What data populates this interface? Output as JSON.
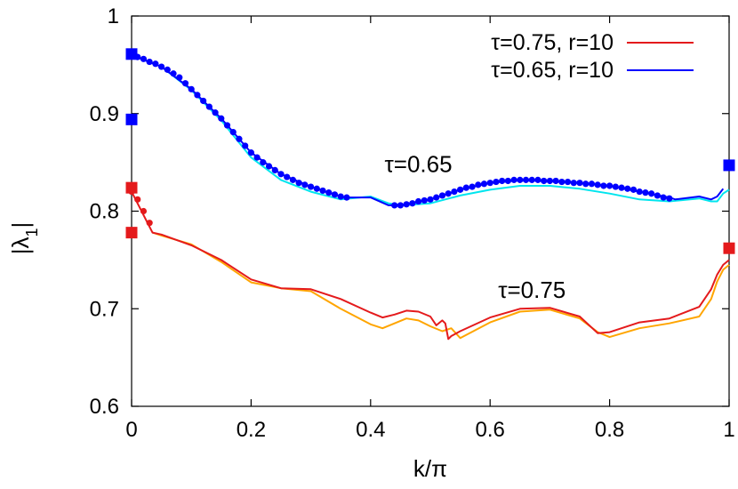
{
  "chart_data": {
    "type": "line",
    "xlabel": "k/π",
    "ylabel": "|λ1|",
    "ylabel_main": "|λ",
    "ylabel_sub": "1",
    "ylabel_close": "|",
    "xlim": [
      0,
      1
    ],
    "ylim": [
      0.6,
      1
    ],
    "xticks": [
      0,
      0.2,
      0.4,
      0.6,
      0.8,
      1
    ],
    "yticks": [
      0.6,
      0.7,
      0.8,
      0.9,
      1
    ],
    "xtick_labels": [
      "0",
      "0.2",
      "0.4",
      "0.6",
      "0.8",
      "1"
    ],
    "ytick_labels": [
      "0.6",
      "0.7",
      "0.8",
      "0.9",
      "1"
    ],
    "legend_position": "top-right",
    "legend": [
      {
        "label": "τ=0.75, r=10",
        "color": "#e41a1c"
      },
      {
        "label": "τ=0.65, r=10",
        "color": "#0000ff"
      }
    ],
    "annotations": [
      {
        "text": "τ=0.65",
        "x": 0.48,
        "y": 0.84
      },
      {
        "text": "τ=0.75",
        "x": 0.67,
        "y": 0.711
      }
    ],
    "series": [
      {
        "name": "τ=0.75, r=10",
        "color": "#e41a1c",
        "style": "line",
        "x": [
          0.0,
          0.035,
          0.05,
          0.1,
          0.15,
          0.2,
          0.25,
          0.3,
          0.35,
          0.4,
          0.42,
          0.44,
          0.46,
          0.48,
          0.5,
          0.51,
          0.52,
          0.525,
          0.53,
          0.535,
          0.55,
          0.6,
          0.65,
          0.7,
          0.75,
          0.78,
          0.8,
          0.85,
          0.9,
          0.95,
          0.97,
          0.98,
          0.99,
          1.0
        ],
        "y": [
          0.82,
          0.778,
          0.776,
          0.765,
          0.75,
          0.73,
          0.721,
          0.72,
          0.71,
          0.696,
          0.691,
          0.694,
          0.698,
          0.697,
          0.692,
          0.683,
          0.688,
          0.685,
          0.669,
          0.672,
          0.677,
          0.691,
          0.7,
          0.701,
          0.692,
          0.675,
          0.676,
          0.686,
          0.69,
          0.702,
          0.72,
          0.735,
          0.745,
          0.75
        ]
      },
      {
        "name": "τ=0.65, r=10",
        "color": "#0000ff",
        "style": "line",
        "x": [
          0.0,
          0.05,
          0.1,
          0.15,
          0.2,
          0.25,
          0.3,
          0.35,
          0.36,
          0.4,
          0.43,
          0.45,
          0.5,
          0.55,
          0.6,
          0.65,
          0.7,
          0.75,
          0.8,
          0.85,
          0.9,
          0.91,
          0.95,
          0.97,
          0.98,
          0.99
        ],
        "y": [
          0.96,
          0.948,
          0.925,
          0.895,
          0.86,
          0.838,
          0.825,
          0.815,
          0.814,
          0.814,
          0.806,
          0.806,
          0.812,
          0.822,
          0.829,
          0.832,
          0.831,
          0.829,
          0.826,
          0.82,
          0.814,
          0.812,
          0.815,
          0.812,
          0.815,
          0.823
        ]
      },
      {
        "name": "",
        "color": "#ffa500",
        "style": "line",
        "x": [
          0.035,
          0.05,
          0.1,
          0.15,
          0.2,
          0.25,
          0.3,
          0.35,
          0.4,
          0.42,
          0.44,
          0.46,
          0.48,
          0.5,
          0.52,
          0.535,
          0.55,
          0.6,
          0.65,
          0.7,
          0.75,
          0.78,
          0.8,
          0.85,
          0.9,
          0.95,
          0.97,
          0.98,
          0.99,
          1.0
        ],
        "y": [
          0.778,
          0.775,
          0.766,
          0.748,
          0.727,
          0.721,
          0.718,
          0.7,
          0.684,
          0.68,
          0.685,
          0.69,
          0.688,
          0.682,
          0.677,
          0.68,
          0.67,
          0.686,
          0.697,
          0.699,
          0.69,
          0.676,
          0.671,
          0.68,
          0.685,
          0.692,
          0.71,
          0.728,
          0.74,
          0.745
        ]
      },
      {
        "name": "",
        "color": "#00e5ee",
        "style": "line",
        "x": [
          0.05,
          0.1,
          0.15,
          0.2,
          0.25,
          0.3,
          0.35,
          0.4,
          0.43,
          0.45,
          0.5,
          0.55,
          0.6,
          0.65,
          0.7,
          0.75,
          0.8,
          0.85,
          0.9,
          0.95,
          0.97,
          0.98,
          0.99,
          1.0
        ],
        "y": [
          0.948,
          0.924,
          0.893,
          0.855,
          0.832,
          0.82,
          0.812,
          0.815,
          0.808,
          0.806,
          0.808,
          0.816,
          0.822,
          0.826,
          0.826,
          0.823,
          0.818,
          0.812,
          0.81,
          0.813,
          0.81,
          0.81,
          0.818,
          0.822
        ]
      },
      {
        "name": "",
        "color": "#0000ff",
        "style": "points",
        "x": [
          0.0,
          0.01,
          0.02,
          0.03,
          0.04,
          0.05,
          0.06,
          0.07,
          0.08,
          0.09,
          0.1,
          0.11,
          0.12,
          0.13,
          0.14,
          0.15,
          0.16,
          0.17,
          0.18,
          0.19,
          0.2,
          0.21,
          0.22,
          0.23,
          0.24,
          0.25,
          0.26,
          0.27,
          0.28,
          0.29,
          0.3,
          0.31,
          0.32,
          0.33,
          0.34,
          0.35,
          0.36,
          0.44,
          0.45,
          0.46,
          0.47,
          0.48,
          0.49,
          0.5,
          0.51,
          0.52,
          0.53,
          0.54,
          0.55,
          0.56,
          0.57,
          0.58,
          0.59,
          0.6,
          0.61,
          0.62,
          0.63,
          0.64,
          0.65,
          0.66,
          0.67,
          0.68,
          0.69,
          0.7,
          0.71,
          0.72,
          0.73,
          0.74,
          0.75,
          0.76,
          0.77,
          0.78,
          0.79,
          0.8,
          0.81,
          0.82,
          0.83,
          0.84,
          0.85,
          0.86,
          0.87,
          0.88,
          0.89,
          0.9
        ],
        "y": [
          0.96,
          0.958,
          0.956,
          0.953,
          0.951,
          0.948,
          0.945,
          0.941,
          0.937,
          0.931,
          0.925,
          0.919,
          0.913,
          0.907,
          0.901,
          0.895,
          0.888,
          0.881,
          0.874,
          0.867,
          0.86,
          0.855,
          0.85,
          0.846,
          0.842,
          0.838,
          0.835,
          0.832,
          0.829,
          0.827,
          0.825,
          0.823,
          0.821,
          0.819,
          0.817,
          0.815,
          0.814,
          0.806,
          0.806,
          0.807,
          0.808,
          0.81,
          0.811,
          0.812,
          0.814,
          0.816,
          0.818,
          0.82,
          0.822,
          0.824,
          0.825,
          0.827,
          0.828,
          0.829,
          0.83,
          0.831,
          0.831,
          0.832,
          0.832,
          0.832,
          0.832,
          0.832,
          0.831,
          0.831,
          0.831,
          0.83,
          0.83,
          0.829,
          0.829,
          0.828,
          0.828,
          0.827,
          0.826,
          0.826,
          0.825,
          0.824,
          0.823,
          0.822,
          0.82,
          0.819,
          0.818,
          0.816,
          0.814,
          0.813
        ]
      },
      {
        "name": "",
        "color": "#e41a1c",
        "style": "points",
        "x": [
          0.0,
          0.01,
          0.02,
          0.03
        ],
        "y": [
          0.82,
          0.812,
          0.8,
          0.788
        ]
      },
      {
        "name": "",
        "color": "#0000ff",
        "style": "squares",
        "x": [
          0.0,
          0.0,
          1.0
        ],
        "y": [
          0.961,
          0.894,
          0.847
        ]
      },
      {
        "name": "",
        "color": "#e41a1c",
        "style": "squares",
        "x": [
          0.0,
          0.0,
          1.0
        ],
        "y": [
          0.824,
          0.778,
          0.762
        ]
      }
    ]
  }
}
